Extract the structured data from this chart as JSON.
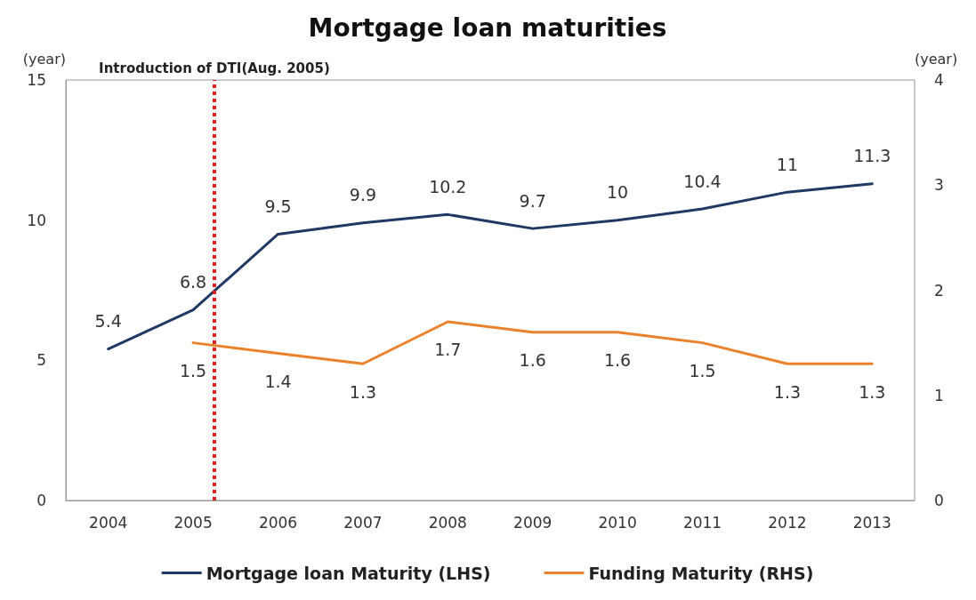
{
  "chart_data": {
    "type": "line",
    "title": "Mortgage loan maturities",
    "ylabel": "(year)",
    "y2label": "(year)",
    "x": [
      2004,
      2005,
      2006,
      2007,
      2008,
      2009,
      2010,
      2011,
      2012,
      2013
    ],
    "xlim": [
      2003.5,
      2013.5
    ],
    "xticks": [
      2004,
      2005,
      2006,
      2007,
      2008,
      2009,
      2010,
      2011,
      2012,
      2013
    ],
    "ylim": [
      0,
      15
    ],
    "yticks": [
      0,
      5,
      10,
      15
    ],
    "y2lim": [
      0,
      4
    ],
    "y2ticks": [
      0,
      1,
      2,
      3,
      4
    ],
    "series": [
      {
        "name": "Mortgage loan Maturity (LHS)",
        "color": "#1f3864",
        "values": [
          5.4,
          6.8,
          9.5,
          9.9,
          10.2,
          9.7,
          10,
          10.4,
          11,
          11.3
        ]
      },
      {
        "name": "Funding Maturity (RHS)",
        "color": "#e9822a",
        "axis": "y2",
        "values": [
          null,
          1.5,
          1.4,
          1.3,
          1.7,
          1.6,
          1.6,
          1.5,
          1.3,
          1.3
        ]
      }
    ],
    "ref_lines": [
      {
        "axis": "x",
        "value": 2005.25,
        "label": "Introduction of DTI(Aug. 2005)",
        "color": "#e02020",
        "line_style": "dotted"
      }
    ],
    "data_labels": true,
    "grid": false,
    "legend": "bottom",
    "marker": "none",
    "line_style": "solid"
  }
}
